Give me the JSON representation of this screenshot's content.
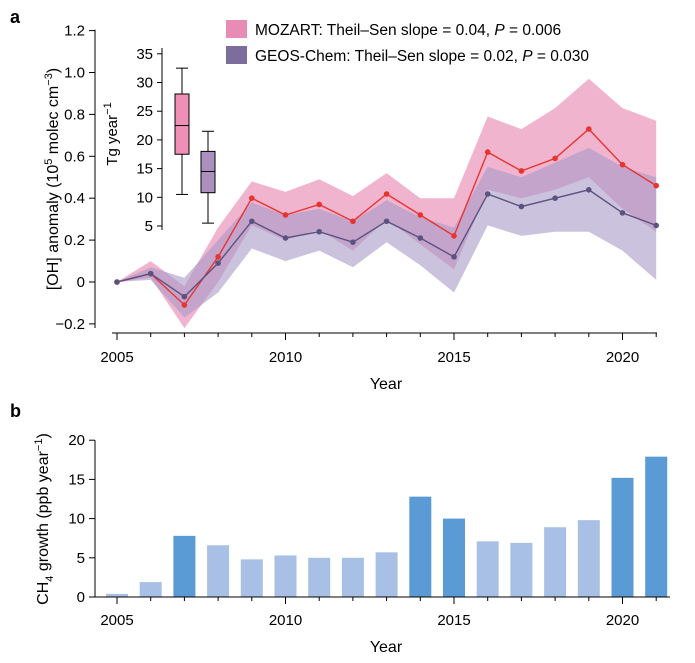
{
  "colors": {
    "mozart_line": "#e8342e",
    "mozart_band": "#e98cb5",
    "mozart_box": "#f08fb6",
    "geos_line": "#5a5380",
    "geos_band": "#a899c8",
    "geos_box": "#ab8fbf",
    "bar_dark": "#5b9bd5",
    "bar_light": "#a8c0e6"
  },
  "chart_data": [
    {
      "panel": "a",
      "type": "line",
      "xlabel": "Year",
      "ylabel_parts": {
        "pre": "[OH] anomaly (10",
        "exp1": "5",
        "mid": " molec cm",
        "exp2": "−3",
        "post": ")"
      },
      "xlim": [
        2005,
        2021
      ],
      "ylim": [
        -0.22,
        1.2
      ],
      "xticks": [
        2005,
        2010,
        2015,
        2020
      ],
      "yticks": [
        -0.2,
        0,
        0.2,
        0.4,
        0.6,
        0.8,
        1.0,
        1.2
      ],
      "ytick_labels": [
        "−0.2",
        "0",
        "0.2",
        "0.4",
        "0.6",
        "0.8",
        "1.0",
        "1.2"
      ],
      "x": [
        2005,
        2006,
        2007,
        2008,
        2009,
        2010,
        2011,
        2012,
        2013,
        2014,
        2015,
        2016,
        2017,
        2018,
        2019,
        2020,
        2021
      ],
      "series": [
        {
          "name": "MOZART",
          "legend": {
            "prefix": "MOZART: Theil–Sen slope = 0.04, ",
            "pvar": "P",
            "psuffix": " = 0.006"
          },
          "values": [
            0.0,
            0.04,
            -0.11,
            0.12,
            0.4,
            0.32,
            0.37,
            0.29,
            0.42,
            0.32,
            0.22,
            0.62,
            0.53,
            0.59,
            0.73,
            0.56,
            0.46
          ],
          "lower": [
            0.0,
            0.02,
            -0.22,
            0.0,
            0.27,
            0.2,
            0.25,
            0.15,
            0.3,
            0.18,
            0.06,
            0.44,
            0.4,
            0.44,
            0.5,
            0.35,
            0.24
          ],
          "upper": [
            0.0,
            0.1,
            -0.02,
            0.26,
            0.48,
            0.43,
            0.49,
            0.41,
            0.52,
            0.4,
            0.4,
            0.79,
            0.73,
            0.83,
            0.97,
            0.83,
            0.77
          ]
        },
        {
          "name": "GEOS-Chem",
          "legend": {
            "prefix": "GEOS-Chem: Theil–Sen slope = 0.02, ",
            "pvar": "P",
            "psuffix": " = 0.030"
          },
          "values": [
            0.0,
            0.04,
            -0.07,
            0.09,
            0.29,
            0.21,
            0.24,
            0.19,
            0.29,
            0.21,
            0.12,
            0.42,
            0.36,
            0.4,
            0.44,
            0.33,
            0.27
          ],
          "lower": [
            0.0,
            0.01,
            -0.17,
            -0.05,
            0.16,
            0.1,
            0.15,
            0.07,
            0.19,
            0.08,
            -0.05,
            0.27,
            0.22,
            0.24,
            0.24,
            0.15,
            0.01
          ],
          "upper": [
            0.0,
            0.07,
            0.02,
            0.2,
            0.38,
            0.32,
            0.35,
            0.29,
            0.39,
            0.31,
            0.26,
            0.55,
            0.5,
            0.57,
            0.64,
            0.55,
            0.5
          ]
        }
      ]
    },
    {
      "panel": "a-inset",
      "type": "box",
      "ylabel_parts": {
        "pre": "Tg year",
        "exp": "−1"
      },
      "ylim": [
        4,
        36
      ],
      "yticks": [
        5,
        10,
        15,
        20,
        25,
        30,
        35
      ],
      "boxes": [
        {
          "name": "MOZART",
          "whisker_low": 10.5,
          "q1": 17.5,
          "median": 22.5,
          "q3": 28,
          "whisker_high": 32.5
        },
        {
          "name": "GEOS-Chem",
          "whisker_low": 5.5,
          "q1": 10.8,
          "median": 14.5,
          "q3": 18,
          "whisker_high": 21.5
        }
      ]
    },
    {
      "panel": "b",
      "type": "bar",
      "xlabel": "Year",
      "ylabel_parts": {
        "pre": "CH",
        "sub": "4",
        "mid": " growth (ppb year",
        "exp": "−1",
        "post": ")"
      },
      "xlim": [
        2005,
        2021
      ],
      "ylim": [
        0,
        20
      ],
      "xticks": [
        2005,
        2010,
        2015,
        2020
      ],
      "yticks": [
        0,
        5,
        10,
        15,
        20
      ],
      "categories": [
        2005,
        2006,
        2007,
        2008,
        2009,
        2010,
        2011,
        2012,
        2013,
        2014,
        2015,
        2016,
        2017,
        2018,
        2019,
        2020,
        2021
      ],
      "values": [
        0.4,
        1.9,
        7.8,
        6.6,
        4.8,
        5.3,
        5.0,
        5.0,
        5.7,
        12.8,
        10.0,
        7.1,
        6.9,
        8.9,
        9.8,
        15.2,
        17.9
      ],
      "highlighted": [
        false,
        false,
        true,
        false,
        false,
        false,
        false,
        false,
        false,
        true,
        true,
        false,
        false,
        false,
        false,
        true,
        true
      ]
    }
  ]
}
